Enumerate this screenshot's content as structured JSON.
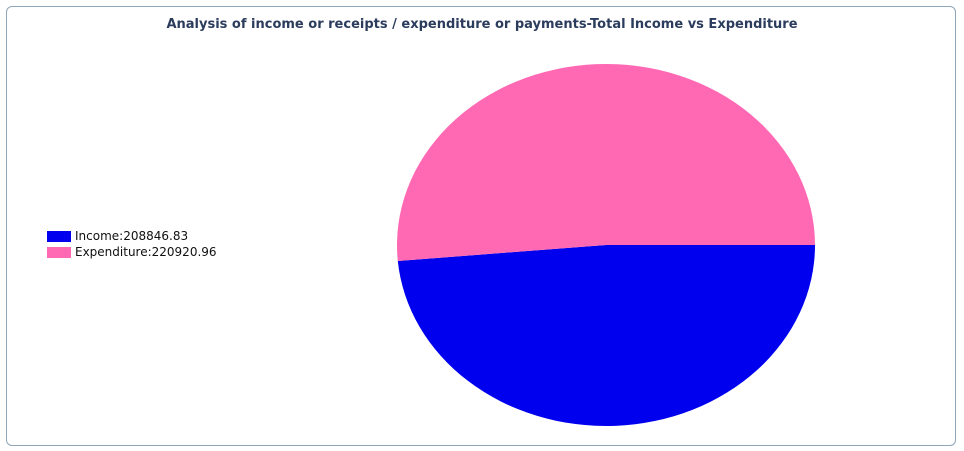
{
  "chart_data": {
    "type": "pie",
    "title": "Analysis of income or receipts / expenditure or payments-Total Income vs Expenditure",
    "slices": [
      {
        "label": "Income",
        "value": 208846.83,
        "color": "#0000ee",
        "legend_text": "Income:208846.83"
      },
      {
        "label": "Expenditure",
        "value": 220920.96,
        "color": "#ff69b4",
        "legend_text": "Expenditure:220920.96"
      }
    ],
    "legend_placement": "left"
  }
}
